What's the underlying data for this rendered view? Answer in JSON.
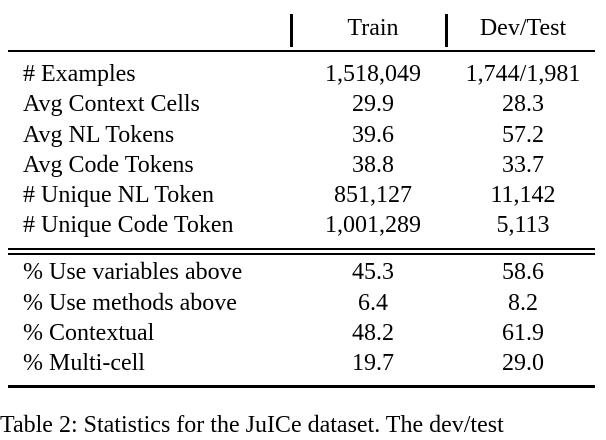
{
  "table": {
    "headers": [
      "",
      "Train",
      "Dev/Test"
    ],
    "rows_group1": [
      [
        "# Examples",
        "1,518,049",
        "1,744/1,981"
      ],
      [
        "Avg Context Cells",
        "29.9",
        "28.3"
      ],
      [
        "Avg NL Tokens",
        "39.6",
        "57.2"
      ],
      [
        "Avg Code Tokens",
        "38.8",
        "33.7"
      ],
      [
        "# Unique NL Token",
        "851,127",
        "11,142"
      ],
      [
        "# Unique Code Token",
        "1,001,289",
        "5,113"
      ]
    ],
    "rows_group2": [
      [
        "% Use variables above",
        "45.3",
        "58.6"
      ],
      [
        "% Use methods above",
        "6.4",
        "8.2"
      ],
      [
        "% Contextual",
        "48.2",
        "61.9"
      ],
      [
        "% Multi-cell",
        "19.7",
        "29.0"
      ]
    ]
  },
  "caption": "Table 2: Statistics for the JuICe dataset. The dev/test"
}
